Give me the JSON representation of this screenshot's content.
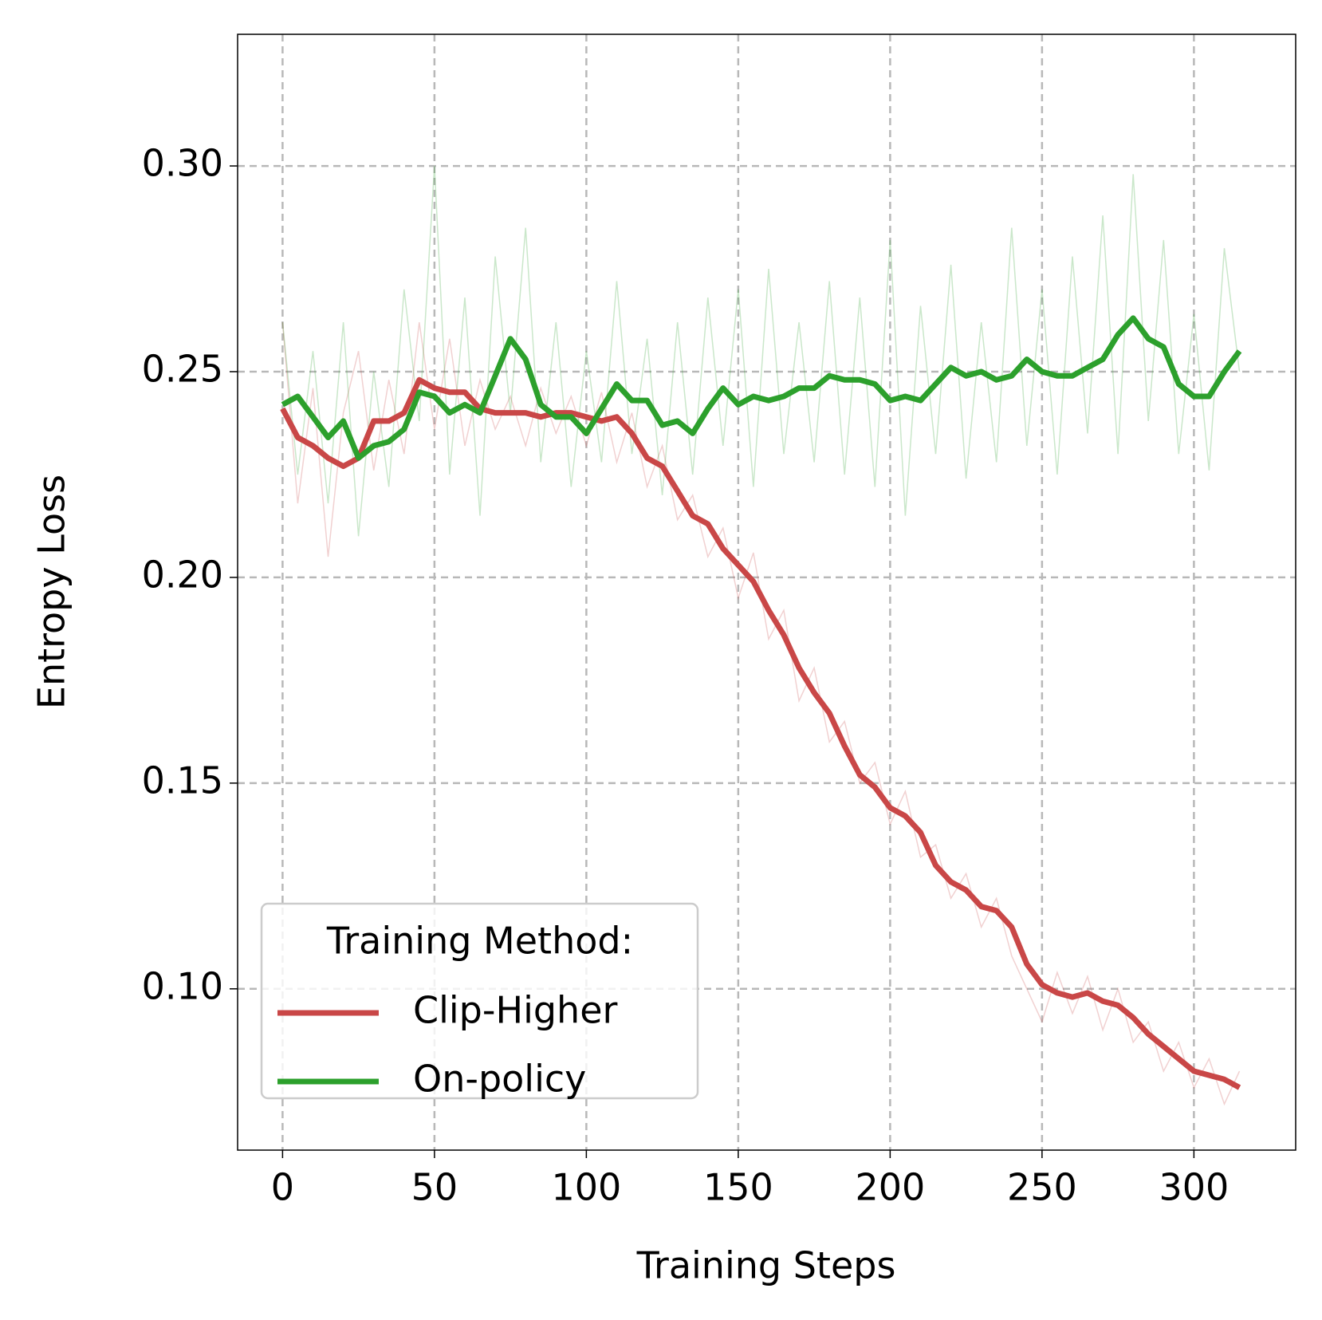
{
  "chart_data": {
    "type": "line",
    "x_label": "Training Steps",
    "y_label": "Entropy Loss",
    "legend_title": "Training Method:",
    "legend": "lower left",
    "grid": true,
    "x": [
      0,
      5,
      10,
      15,
      20,
      25,
      30,
      35,
      40,
      45,
      50,
      55,
      60,
      65,
      70,
      75,
      80,
      85,
      90,
      95,
      100,
      105,
      110,
      115,
      120,
      125,
      130,
      135,
      140,
      145,
      150,
      155,
      160,
      165,
      170,
      175,
      180,
      185,
      190,
      195,
      200,
      205,
      210,
      215,
      220,
      225,
      230,
      235,
      240,
      245,
      250,
      255,
      260,
      265,
      270,
      275,
      280,
      285,
      290,
      295,
      300,
      305,
      310,
      315
    ],
    "series": [
      {
        "name": "Clip-Higher",
        "color": "#c94747",
        "values": [
          0.241,
          0.234,
          0.232,
          0.229,
          0.227,
          0.229,
          0.238,
          0.238,
          0.24,
          0.248,
          0.246,
          0.245,
          0.245,
          0.241,
          0.24,
          0.24,
          0.24,
          0.239,
          0.24,
          0.24,
          0.239,
          0.238,
          0.239,
          0.235,
          0.229,
          0.227,
          0.221,
          0.215,
          0.213,
          0.207,
          0.203,
          0.199,
          0.192,
          0.186,
          0.178,
          0.172,
          0.167,
          0.159,
          0.152,
          0.149,
          0.144,
          0.142,
          0.138,
          0.13,
          0.126,
          0.124,
          0.12,
          0.119,
          0.115,
          0.106,
          0.101,
          0.099,
          0.098,
          0.099,
          0.097,
          0.096,
          0.093,
          0.089,
          0.086,
          0.083,
          0.08,
          0.079,
          0.078,
          0.076
        ],
        "raw_values": [
          0.262,
          0.218,
          0.246,
          0.205,
          0.24,
          0.255,
          0.226,
          0.248,
          0.23,
          0.262,
          0.236,
          0.258,
          0.232,
          0.248,
          0.236,
          0.244,
          0.232,
          0.246,
          0.235,
          0.244,
          0.232,
          0.245,
          0.228,
          0.24,
          0.222,
          0.232,
          0.214,
          0.22,
          0.205,
          0.212,
          0.195,
          0.206,
          0.185,
          0.192,
          0.17,
          0.178,
          0.16,
          0.165,
          0.15,
          0.155,
          0.14,
          0.148,
          0.132,
          0.135,
          0.122,
          0.128,
          0.115,
          0.122,
          0.108,
          0.1,
          0.092,
          0.104,
          0.094,
          0.103,
          0.09,
          0.1,
          0.087,
          0.092,
          0.08,
          0.087,
          0.076,
          0.083,
          0.072,
          0.08
        ]
      },
      {
        "name": "On-policy",
        "color": "#2ca02c",
        "values": [
          0.242,
          0.244,
          0.239,
          0.234,
          0.238,
          0.229,
          0.232,
          0.233,
          0.236,
          0.245,
          0.244,
          0.24,
          0.242,
          0.24,
          0.249,
          0.258,
          0.253,
          0.242,
          0.239,
          0.239,
          0.235,
          0.241,
          0.247,
          0.243,
          0.243,
          0.237,
          0.238,
          0.235,
          0.241,
          0.246,
          0.242,
          0.244,
          0.243,
          0.244,
          0.246,
          0.246,
          0.249,
          0.248,
          0.248,
          0.247,
          0.243,
          0.244,
          0.243,
          0.247,
          0.251,
          0.249,
          0.25,
          0.248,
          0.249,
          0.253,
          0.25,
          0.249,
          0.249,
          0.251,
          0.253,
          0.259,
          0.263,
          0.258,
          0.256,
          0.247,
          0.244,
          0.244,
          0.25,
          0.255
        ],
        "raw_values": [
          0.262,
          0.225,
          0.255,
          0.218,
          0.262,
          0.21,
          0.25,
          0.222,
          0.27,
          0.238,
          0.3,
          0.225,
          0.268,
          0.215,
          0.278,
          0.24,
          0.285,
          0.228,
          0.262,
          0.222,
          0.255,
          0.228,
          0.272,
          0.23,
          0.258,
          0.22,
          0.262,
          0.225,
          0.268,
          0.232,
          0.27,
          0.222,
          0.275,
          0.23,
          0.262,
          0.228,
          0.272,
          0.225,
          0.268,
          0.222,
          0.282,
          0.215,
          0.266,
          0.23,
          0.276,
          0.224,
          0.262,
          0.228,
          0.285,
          0.232,
          0.27,
          0.225,
          0.278,
          0.235,
          0.288,
          0.23,
          0.298,
          0.238,
          0.282,
          0.23,
          0.264,
          0.226,
          0.28,
          0.25
        ]
      }
    ],
    "xlim": [
      -14.8,
      333.5
    ],
    "xticks": [
      0,
      50,
      100,
      150,
      200,
      250,
      300
    ],
    "ylim": [
      0.0608,
      0.332
    ],
    "yticks": [
      {
        "value": 0.1,
        "label": "0.10"
      },
      {
        "value": 0.15,
        "label": "0.15"
      },
      {
        "value": 0.2,
        "label": "0.20"
      },
      {
        "value": 0.25,
        "label": "0.25"
      },
      {
        "value": 0.3,
        "label": "0.30"
      }
    ]
  }
}
